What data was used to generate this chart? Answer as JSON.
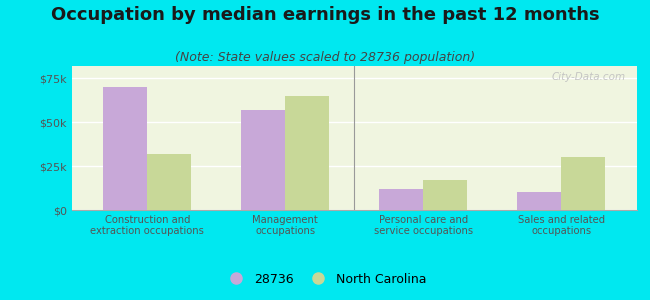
{
  "title": "Occupation by median earnings in the past 12 months",
  "subtitle": "(Note: State values scaled to 28736 population)",
  "categories": [
    "Construction and\nextraction occupations",
    "Management\noccupations",
    "Personal care and\nservice occupations",
    "Sales and related\noccupations"
  ],
  "values_28736": [
    70000,
    57000,
    12000,
    10000
  ],
  "values_nc": [
    32000,
    65000,
    17000,
    30000
  ],
  "color_28736": "#c8a8d8",
  "color_nc": "#c8d898",
  "bar_width": 0.32,
  "ylim": [
    0,
    82000
  ],
  "yticks": [
    0,
    25000,
    50000,
    75000
  ],
  "ytick_labels": [
    "$0",
    "$25k",
    "$50k",
    "$75k"
  ],
  "background_outer": "#00e8f0",
  "background_inner": "#f0f5e0",
  "legend_labels": [
    "28736",
    "North Carolina"
  ],
  "watermark": "City-Data.com",
  "title_fontsize": 13,
  "subtitle_fontsize": 9
}
